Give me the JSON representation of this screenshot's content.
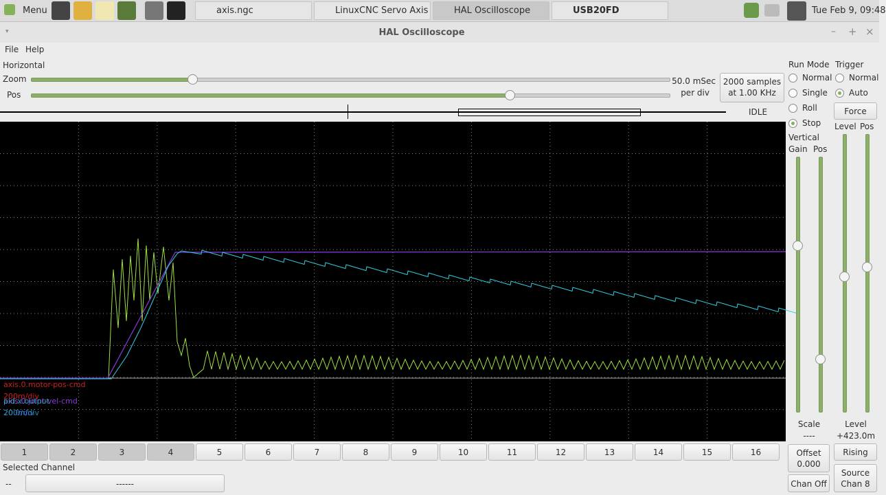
{
  "taskbar": {
    "menu": "Menu",
    "tasks": [
      "axis.ngc",
      "LinuxCNC Servo Axis ...",
      "HAL Oscilloscope",
      "USB20FD"
    ],
    "clock": "Tue Feb 9, 09:48"
  },
  "window": {
    "title": "HAL Oscilloscope"
  },
  "menu": [
    "File",
    "Help"
  ],
  "horizontal": {
    "title": "Horizontal",
    "zoom_label": "Zoom",
    "pos_label": "Pos",
    "scale": [
      "50.0 mSec",
      "per div"
    ],
    "samples": [
      "2000 samples",
      "at 1.00 KHz"
    ],
    "state": "IDLE"
  },
  "traces": [
    {
      "name": "axis.0.motor-pos-cmd",
      "scale": "200m/div"
    },
    {
      "name": "axis.0.joint-vel-cmd",
      "scale": "20.0/div"
    },
    {
      "name": "pid.x.output",
      "scale": "200m/div"
    }
  ],
  "channels": [
    "1",
    "2",
    "3",
    "4",
    "5",
    "6",
    "7",
    "8",
    "9",
    "10",
    "11",
    "12",
    "13",
    "14",
    "15",
    "16"
  ],
  "selected_channel": {
    "label": "Selected Channel",
    "value": "--",
    "button": "------"
  },
  "run_mode": {
    "title": "Run Mode",
    "options": [
      "Normal",
      "Single",
      "Roll",
      "Stop"
    ]
  },
  "trigger": {
    "title": "Trigger",
    "options": [
      "Normal",
      "Auto"
    ],
    "force": "Force",
    "level_label": "Level",
    "pos_label": "Pos",
    "level_title": "Level",
    "level_value": "+423.0m",
    "edge": "Rising",
    "source": [
      "Source",
      "Chan 8"
    ]
  },
  "vertical": {
    "title": "Vertical",
    "gain_label": "Gain",
    "pos_label": "Pos",
    "scale_label": "Scale",
    "scale_value": "----",
    "offset": [
      "Offset",
      "0.000"
    ],
    "chan_off": "Chan Off"
  }
}
